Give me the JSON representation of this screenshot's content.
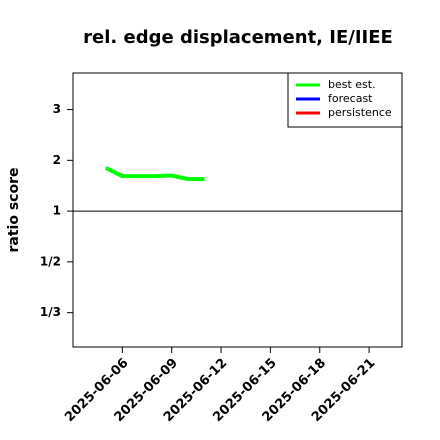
{
  "chart_data": {
    "type": "line",
    "title": "rel. edge displacement, IE/IIEE",
    "ylabel": "ratio score",
    "scale": "ratio",
    "x": [
      "2025-06-05",
      "2025-06-06",
      "2025-06-07",
      "2025-06-08",
      "2025-06-09",
      "2025-06-10",
      "2025-06-11"
    ],
    "series": [
      {
        "name": "best est.",
        "color": "#00ff00",
        "values": [
          1.85,
          1.69,
          1.69,
          1.69,
          1.7,
          1.63,
          1.63
        ]
      },
      {
        "name": "forecast",
        "color": "#0000ff",
        "values": [
          null,
          null,
          null,
          null,
          null,
          null,
          null
        ]
      },
      {
        "name": "persistence",
        "color": "#ff0000",
        "values": [
          null,
          null,
          null,
          null,
          null,
          null,
          null
        ]
      }
    ],
    "xlim": [
      "2025-06-03",
      "2025-06-23"
    ],
    "xticks": [
      "2025-06-06",
      "2025-06-09",
      "2025-06-12",
      "2025-06-15",
      "2025-06-18",
      "2025-06-21"
    ],
    "highlight_xtick": {
      "value": "2025-06-12",
      "color": "#228b22"
    },
    "ylim": [
      0.272,
      3.72
    ],
    "yticks": [
      3,
      2,
      1,
      {
        "value": 0.5,
        "label": "1/2"
      },
      {
        "value": 0.3333,
        "label": "1/3"
      }
    ],
    "reference_line": 1,
    "legend": "top-right"
  }
}
